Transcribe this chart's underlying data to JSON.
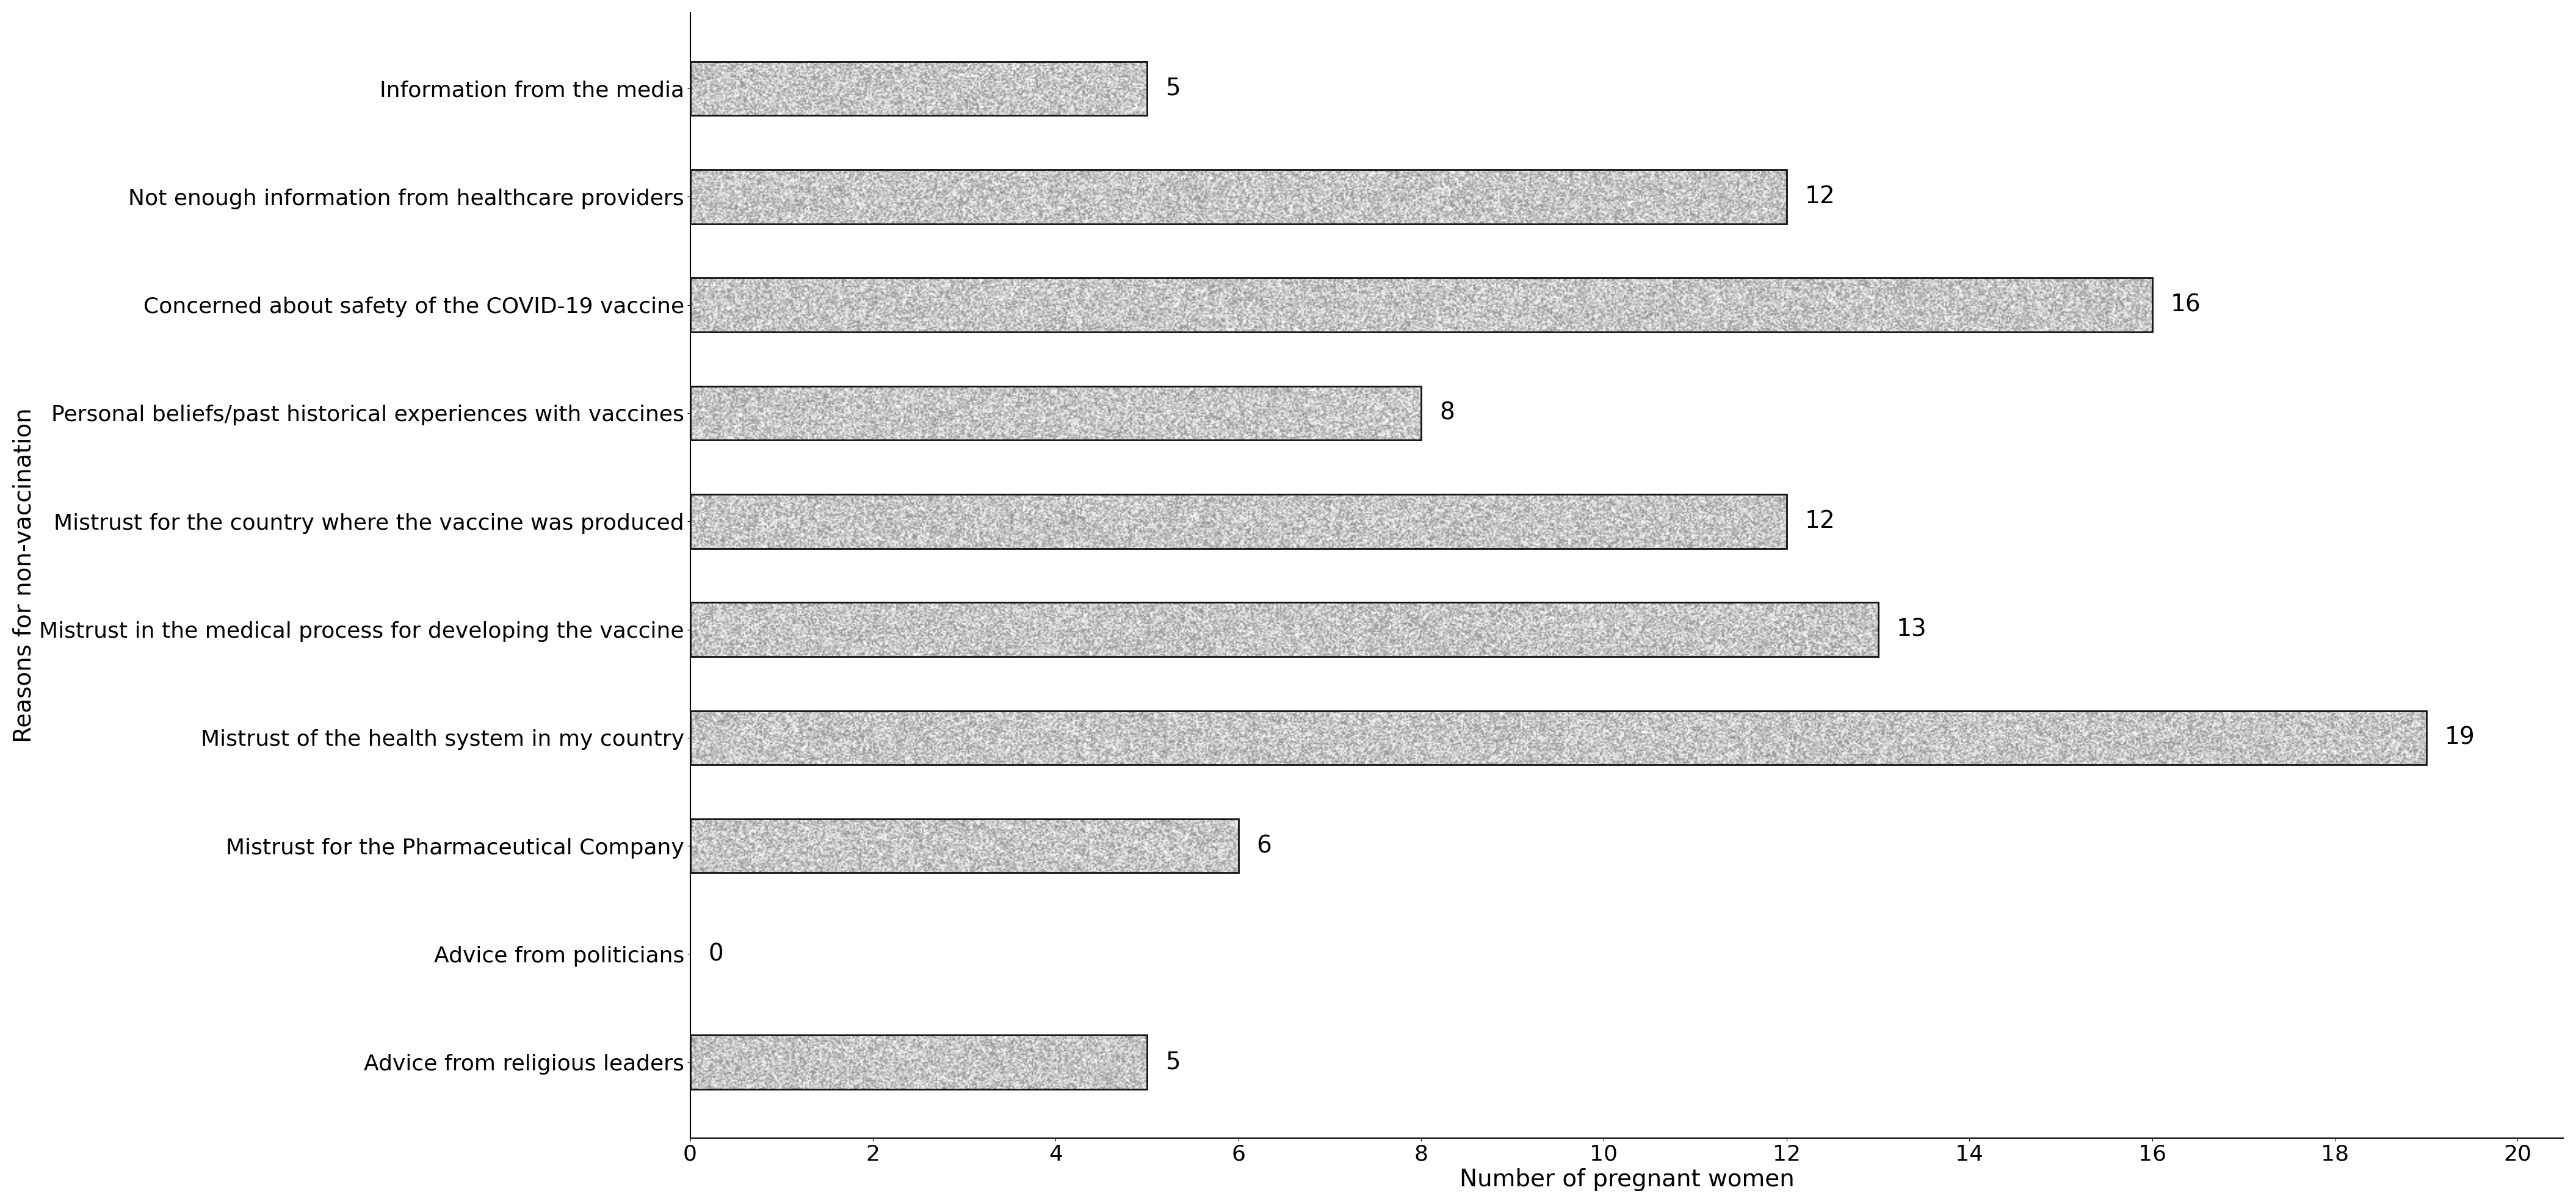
{
  "categories": [
    "Advice from religious leaders",
    "Advice from politicians",
    "Mistrust for the Pharmaceutical Company",
    "Mistrust of the health system in my country",
    "Mistrust in the medical process for developing the vaccine",
    "Mistrust for the country where the vaccine was produced",
    "Personal beliefs/past historical experiences with vaccines",
    "Concerned about safety of the COVID-19 vaccine",
    "Not enough information from healthcare providers",
    "Information from the media"
  ],
  "values": [
    5,
    0,
    6,
    19,
    13,
    12,
    8,
    16,
    12,
    5
  ],
  "xlabel": "Number of pregnant women",
  "ylabel": "Reasons for non-vaccination",
  "xlim": [
    0,
    20
  ],
  "xticks": [
    0,
    2,
    4,
    6,
    8,
    10,
    12,
    14,
    16,
    18,
    20
  ],
  "bar_facecolor": "#c8c8c8",
  "edge_color": "#111111",
  "background_color": "#ffffff",
  "text_color": "#000000",
  "label_fontsize": 28,
  "tick_fontsize": 26,
  "value_fontsize": 28,
  "bar_height": 0.5,
  "bar_linewidth": 2.0
}
